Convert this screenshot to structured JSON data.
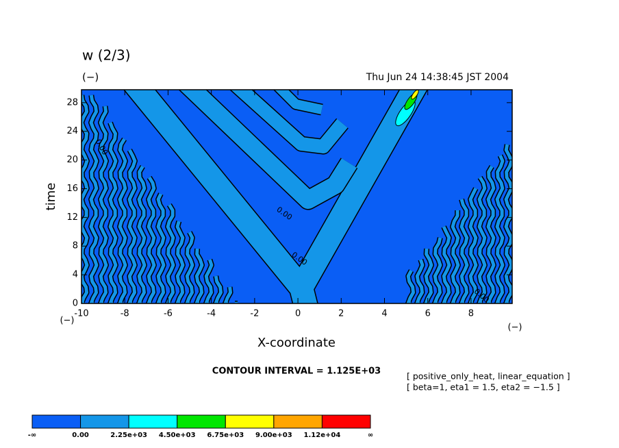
{
  "chart_data": {
    "type": "contour",
    "title": "w (2/3)",
    "y_unit": "(−)",
    "x_unit_left": "(−)",
    "x_unit_right": "(−)",
    "timestamp": "Thu Jun 24 14:38:45 JST 2004",
    "xlabel": "X-coordinate",
    "ylabel": "time",
    "xlim": [
      -10,
      9.9
    ],
    "ylim": [
      0,
      29.8
    ],
    "xticks": [
      -10,
      -8,
      -6,
      -4,
      -2,
      0,
      2,
      4,
      6,
      8
    ],
    "yticks": [
      0,
      4,
      8,
      12,
      16,
      20,
      24,
      28
    ],
    "contour_labels": [
      "0.00",
      "0.00",
      "0.00",
      "0.00"
    ],
    "contour_interval": "CONTOUR INTERVAL = 1.125E+03",
    "notes": [
      "[ positive_only_heat, linear_equation ]",
      "[ beta=1, eta1 = 1.5, eta2 = −1.5 ]"
    ],
    "colorbar": {
      "colors": [
        "#0a5ef5",
        "#1496e8",
        "#00ffff",
        "#00e600",
        "#ffff00",
        "#ffa500",
        "#ff0000"
      ],
      "labels": [
        "-∞",
        "0.00",
        "2.25e+03",
        "4.50e+03",
        "6.75e+03",
        "9.00e+03",
        "1.12e+04",
        "∞"
      ]
    }
  }
}
